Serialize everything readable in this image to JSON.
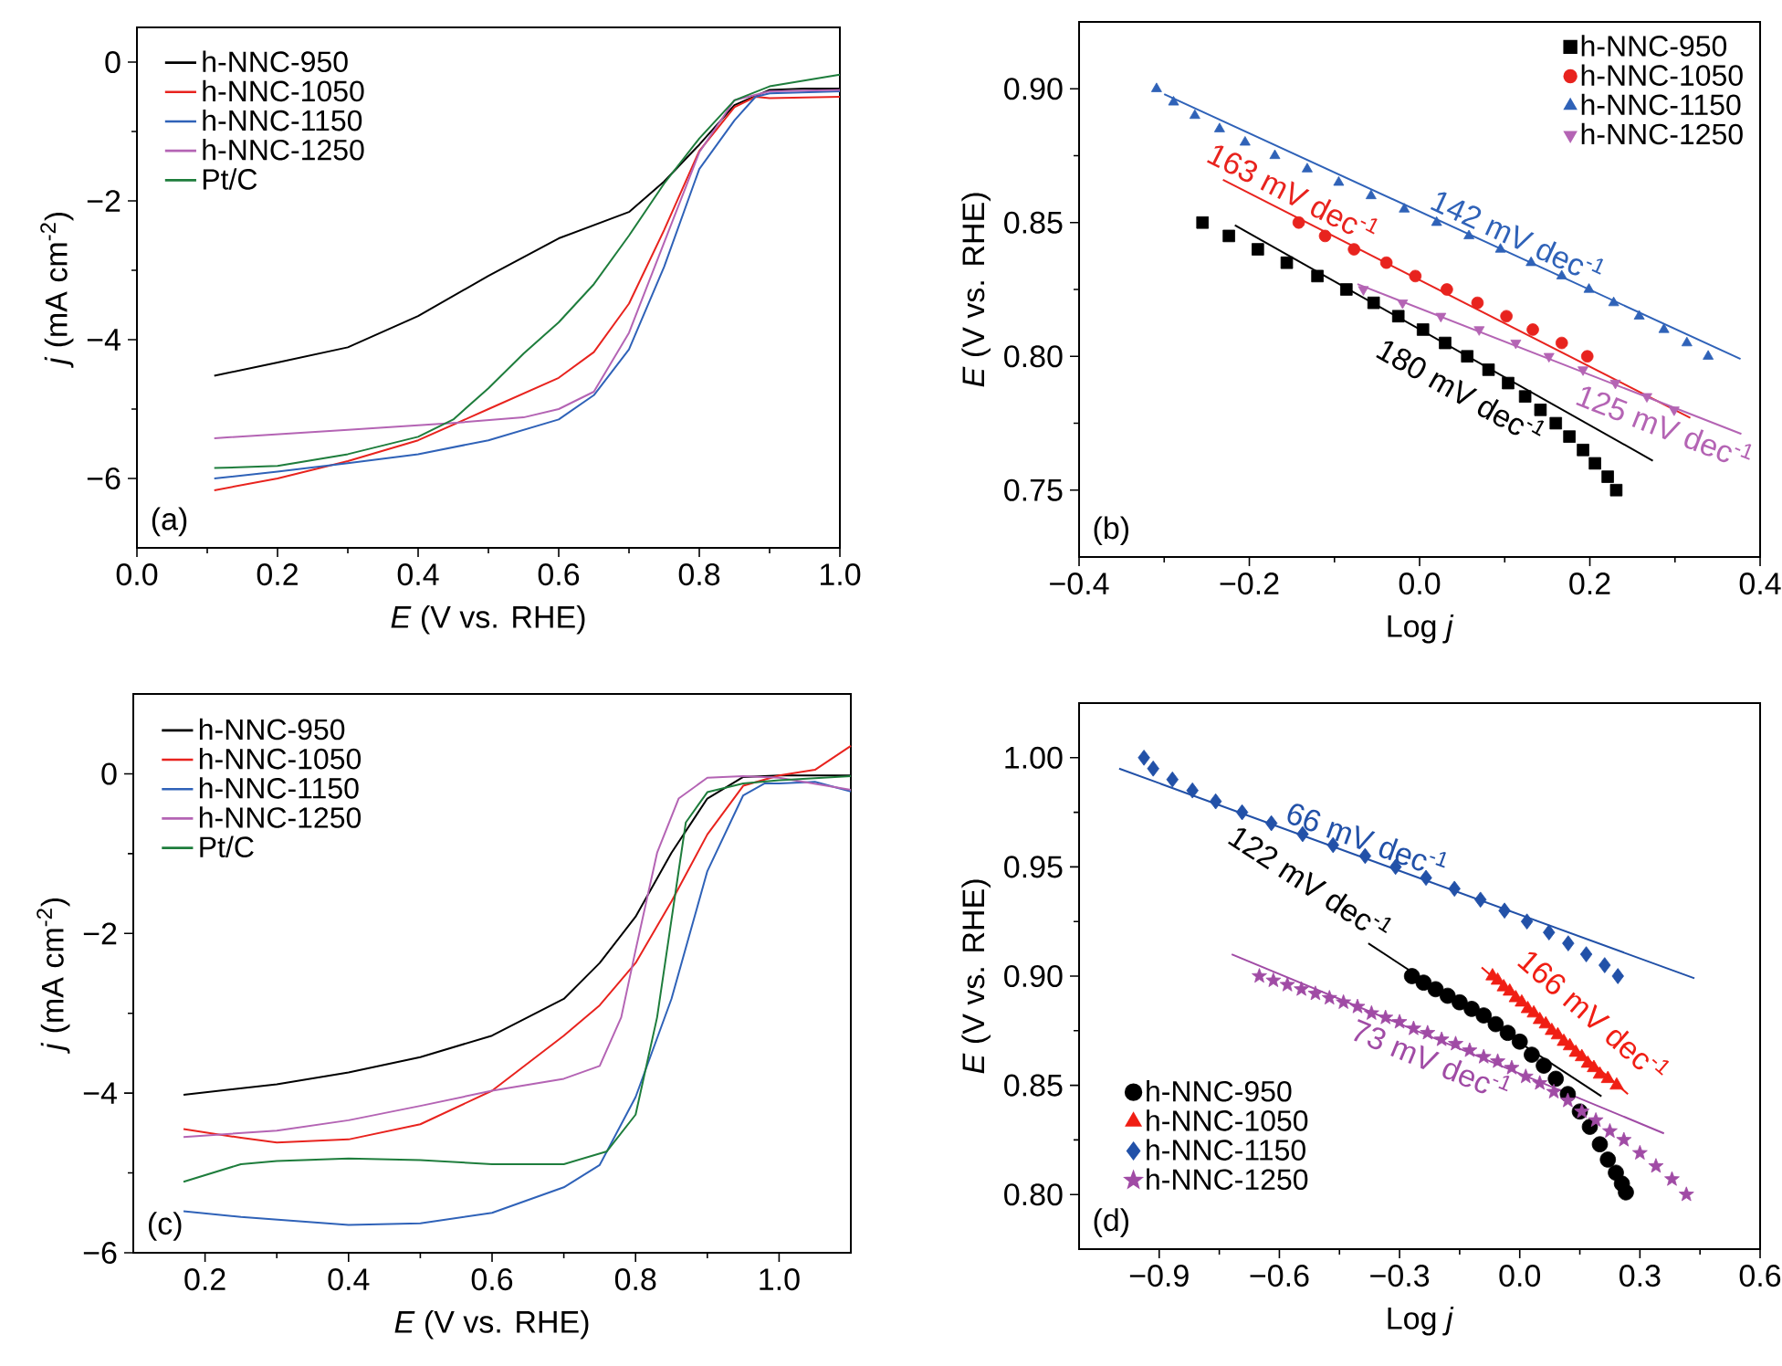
{
  "chart_data": [
    {
      "type": "line",
      "xlabel": "*E* (V vs. RHE)",
      "ylabel": "*j* (mA cm$^{-2}$)",
      "xlim": [
        0,
        1.0
      ],
      "ylim": [
        -7,
        0.5
      ],
      "xticks": [
        {
          "value": 0,
          "label": "0.0"
        },
        {
          "value": 0.2,
          "label": "0.2"
        },
        {
          "value": 0.4,
          "label": "0.4"
        },
        {
          "value": 0.6,
          "label": "0.6"
        },
        {
          "value": 0.8,
          "label": "0.8"
        },
        {
          "value": 1.0,
          "label": "1.0"
        }
      ],
      "yticks": [
        {
          "value": -6,
          "label": "−6"
        },
        {
          "value": -4,
          "label": "−4"
        },
        {
          "value": -2,
          "label": "−2"
        },
        {
          "value": 0,
          "label": "0"
        }
      ],
      "legend": "top left",
      "annotations": [
        "(a)"
      ],
      "series": [
        {
          "name": "h-NNC-950",
          "color": "#000000",
          "x": [
            0.11,
            0.2,
            0.3,
            0.4,
            0.5,
            0.6,
            0.7,
            0.75,
            0.8,
            0.85,
            0.9,
            0.95,
            1.0
          ],
          "values": [
            -4.52,
            -4.33,
            -4.11,
            -3.66,
            -3.08,
            -2.54,
            -2.16,
            -1.72,
            -1.19,
            -0.62,
            -0.4,
            -0.38,
            -0.38
          ]
        },
        {
          "name": "h-NNC-1050",
          "color": "#e8231e",
          "x": [
            0.11,
            0.2,
            0.3,
            0.4,
            0.5,
            0.6,
            0.65,
            0.7,
            0.75,
            0.8,
            0.85,
            0.88,
            0.9,
            1.0
          ],
          "values": [
            -6.17,
            -6.0,
            -5.75,
            -5.45,
            -5.0,
            -4.55,
            -4.18,
            -3.48,
            -2.42,
            -1.28,
            -0.65,
            -0.5,
            -0.52,
            -0.5
          ]
        },
        {
          "name": "h-NNC-1150",
          "color": "#2f62b8",
          "x": [
            0.11,
            0.2,
            0.3,
            0.4,
            0.5,
            0.6,
            0.65,
            0.7,
            0.75,
            0.8,
            0.85,
            0.88,
            0.9,
            1.0
          ],
          "values": [
            -6.0,
            -5.9,
            -5.78,
            -5.65,
            -5.45,
            -5.15,
            -4.8,
            -4.14,
            -2.95,
            -1.54,
            -0.84,
            -0.5,
            -0.45,
            -0.42
          ]
        },
        {
          "name": "h-NNC-1250",
          "color": "#b464b4",
          "x": [
            0.11,
            0.3,
            0.45,
            0.55,
            0.6,
            0.65,
            0.7,
            0.75,
            0.8,
            0.85,
            0.9,
            1.0
          ],
          "values": [
            -5.42,
            -5.3,
            -5.2,
            -5.12,
            -5.0,
            -4.75,
            -3.9,
            -2.6,
            -1.3,
            -0.55,
            -0.42,
            -0.4
          ]
        },
        {
          "name": "Pt/C",
          "color": "#1e7d3c",
          "x": [
            0.11,
            0.2,
            0.3,
            0.4,
            0.45,
            0.5,
            0.55,
            0.6,
            0.65,
            0.7,
            0.75,
            0.8,
            0.85,
            0.9,
            1.0
          ],
          "values": [
            -5.85,
            -5.82,
            -5.65,
            -5.4,
            -5.15,
            -4.7,
            -4.2,
            -3.75,
            -3.2,
            -2.5,
            -1.75,
            -1.1,
            -0.55,
            -0.35,
            -0.18
          ]
        }
      ]
    },
    {
      "type": "scatter",
      "xlabel": "Log *j*",
      "ylabel": "*E* (V vs. RHE)",
      "xlim": [
        -0.4,
        0.4
      ],
      "ylim": [
        0.725,
        0.925
      ],
      "xticks": [
        {
          "value": -0.4,
          "label": "−0.4"
        },
        {
          "value": -0.2,
          "label": "−0.2"
        },
        {
          "value": 0,
          "label": "0.0"
        },
        {
          "value": 0.2,
          "label": "0.2"
        },
        {
          "value": 0.4,
          "label": "0.4"
        }
      ],
      "yticks": [
        {
          "value": 0.75,
          "label": "0.75"
        },
        {
          "value": 0.8,
          "label": "0.80"
        },
        {
          "value": 0.85,
          "label": "0.85"
        },
        {
          "value": 0.9,
          "label": "0.90"
        }
      ],
      "legend": "top right",
      "annotations": [
        "(b)"
      ],
      "series": [
        {
          "name": "h-NNC-950",
          "color": "#000000",
          "marker": "square",
          "x": [
            -0.255,
            -0.224,
            -0.19,
            -0.156,
            -0.12,
            -0.086,
            -0.054,
            -0.025,
            0.004,
            0.03,
            0.056,
            0.081,
            0.104,
            0.124,
            0.142,
            0.16,
            0.176,
            0.192,
            0.206,
            0.221,
            0.231
          ],
          "values": [
            0.85,
            0.845,
            0.84,
            0.835,
            0.83,
            0.825,
            0.82,
            0.815,
            0.81,
            0.805,
            0.8,
            0.795,
            0.79,
            0.785,
            0.78,
            0.775,
            0.77,
            0.765,
            0.76,
            0.755,
            0.75
          ]
        },
        {
          "name": "h-NNC-1050",
          "color": "#e8231e",
          "marker": "circle",
          "x": [
            -0.142,
            -0.111,
            -0.077,
            -0.039,
            -0.005,
            0.032,
            0.068,
            0.102,
            0.133,
            0.167,
            0.197
          ],
          "values": [
            0.85,
            0.845,
            0.84,
            0.835,
            0.83,
            0.825,
            0.82,
            0.815,
            0.81,
            0.805,
            0.8
          ]
        },
        {
          "name": "h-NNC-1150",
          "color": "#2f62b8",
          "marker": "triangle",
          "x": [
            -0.309,
            -0.289,
            -0.264,
            -0.235,
            -0.205,
            -0.17,
            -0.132,
            -0.095,
            -0.057,
            -0.018,
            0.02,
            0.058,
            0.095,
            0.131,
            0.167,
            0.199,
            0.228,
            0.258,
            0.287,
            0.314,
            0.339
          ],
          "values": [
            0.9,
            0.895,
            0.89,
            0.885,
            0.88,
            0.875,
            0.87,
            0.865,
            0.86,
            0.855,
            0.85,
            0.845,
            0.84,
            0.835,
            0.83,
            0.825,
            0.82,
            0.815,
            0.81,
            0.805,
            0.8
          ]
        },
        {
          "name": "h-NNC-1250",
          "color": "#b464b4",
          "marker": "triangle-down",
          "x": [
            -0.066,
            -0.02,
            0.025,
            0.07,
            0.113,
            0.152,
            0.192,
            0.23,
            0.267,
            0.299
          ],
          "values": [
            0.825,
            0.82,
            0.815,
            0.81,
            0.805,
            0.8,
            0.795,
            0.79,
            0.785,
            0.78
          ]
        },
        {
          "type": "line",
          "name": "180 mV dec$^{-1}$",
          "color": "#000000",
          "x": [
            -0.217,
            0.274
          ],
          "values": [
            0.849,
            0.761
          ]
        },
        {
          "type": "line",
          "name": "163 mV dec$^{-1}$",
          "color": "#e8231e",
          "x": [
            -0.231,
            0.318
          ],
          "values": [
            0.866,
            0.777
          ]
        },
        {
          "type": "line",
          "name": "142 mV dec$^{-1}$",
          "color": "#2f62b8",
          "x": [
            -0.3,
            0.377
          ],
          "values": [
            0.898,
            0.799
          ]
        },
        {
          "type": "line",
          "name": "125 mV dec$^{-1}$",
          "color": "#b464b4",
          "x": [
            -0.073,
            0.378
          ],
          "values": [
            0.827,
            0.771
          ]
        }
      ]
    },
    {
      "type": "line",
      "xlabel": "*E* (V vs. RHE)",
      "ylabel": "*j* (mA cm$^{-2}$)",
      "xlim": [
        0.1,
        1.1
      ],
      "ylim": [
        -6,
        1
      ],
      "xticks": [
        {
          "value": 0.2,
          "label": "0.2"
        },
        {
          "value": 0.4,
          "label": "0.4"
        },
        {
          "value": 0.6,
          "label": "0.6"
        },
        {
          "value": 0.8,
          "label": "0.8"
        },
        {
          "value": 1.0,
          "label": "1.0"
        }
      ],
      "yticks": [
        {
          "value": -6,
          "label": "−6"
        },
        {
          "value": -4,
          "label": "−4"
        },
        {
          "value": -2,
          "label": "−2"
        },
        {
          "value": 0,
          "label": "0"
        }
      ],
      "legend": "top left",
      "annotations": [
        "(c)"
      ],
      "series": [
        {
          "name": "h-NNC-950",
          "color": "#000000",
          "x": [
            0.17,
            0.3,
            0.4,
            0.5,
            0.6,
            0.7,
            0.75,
            0.8,
            0.85,
            0.9,
            0.95,
            1.0,
            1.1
          ],
          "values": [
            -4.02,
            -3.89,
            -3.74,
            -3.55,
            -3.28,
            -2.82,
            -2.37,
            -1.79,
            -0.99,
            -0.31,
            -0.04,
            -0.02,
            -0.02
          ]
        },
        {
          "name": "h-NNC-1050",
          "color": "#e8231e",
          "x": [
            0.17,
            0.25,
            0.3,
            0.4,
            0.5,
            0.6,
            0.7,
            0.75,
            0.8,
            0.85,
            0.9,
            0.95,
            1.0,
            1.05,
            1.1
          ],
          "values": [
            -4.45,
            -4.56,
            -4.62,
            -4.58,
            -4.39,
            -3.97,
            -3.28,
            -2.9,
            -2.37,
            -1.6,
            -0.76,
            -0.15,
            -0.02,
            0.05,
            0.35
          ]
        },
        {
          "name": "h-NNC-1150",
          "color": "#2f62b8",
          "x": [
            0.17,
            0.25,
            0.4,
            0.5,
            0.6,
            0.7,
            0.75,
            0.8,
            0.85,
            0.9,
            0.95,
            0.98,
            1.0,
            1.05,
            1.1
          ],
          "values": [
            -5.48,
            -5.55,
            -5.65,
            -5.63,
            -5.5,
            -5.18,
            -4.9,
            -4.05,
            -2.82,
            -1.22,
            -0.27,
            -0.12,
            -0.12,
            -0.1,
            -0.22
          ]
        },
        {
          "name": "h-NNC-1250",
          "color": "#b464b4",
          "x": [
            0.17,
            0.3,
            0.4,
            0.5,
            0.6,
            0.7,
            0.75,
            0.78,
            0.8,
            0.83,
            0.86,
            0.9,
            0.95,
            1.0,
            1.1
          ],
          "values": [
            -4.55,
            -4.47,
            -4.34,
            -4.16,
            -3.97,
            -3.82,
            -3.66,
            -3.05,
            -2.21,
            -0.99,
            -0.31,
            -0.05,
            -0.03,
            -0.05,
            -0.2
          ]
        },
        {
          "name": "Pt/C",
          "color": "#1e7d3c",
          "x": [
            0.17,
            0.25,
            0.3,
            0.4,
            0.5,
            0.6,
            0.7,
            0.76,
            0.8,
            0.83,
            0.85,
            0.87,
            0.9,
            0.95,
            1.0,
            1.1
          ],
          "values": [
            -5.11,
            -4.89,
            -4.85,
            -4.82,
            -4.84,
            -4.89,
            -4.89,
            -4.73,
            -4.27,
            -3.05,
            -1.83,
            -0.61,
            -0.23,
            -0.12,
            -0.08,
            -0.03
          ]
        }
      ]
    },
    {
      "type": "scatter",
      "xlabel": "Log *j*",
      "ylabel": "*E* (V vs. RHE)",
      "xlim": [
        -1.1,
        0.6
      ],
      "ylim": [
        0.775,
        1.025
      ],
      "xticks": [
        {
          "value": -0.9,
          "label": "−0.9"
        },
        {
          "value": -0.6,
          "label": "−0.6"
        },
        {
          "value": -0.3,
          "label": "−0.3"
        },
        {
          "value": 0,
          "label": "0.0"
        },
        {
          "value": 0.3,
          "label": "0.3"
        },
        {
          "value": 0.6,
          "label": "0.6"
        }
      ],
      "yticks": [
        {
          "value": 0.8,
          "label": "0.80"
        },
        {
          "value": 0.85,
          "label": "0.85"
        },
        {
          "value": 0.9,
          "label": "0.90"
        },
        {
          "value": 0.95,
          "label": "0.95"
        },
        {
          "value": 1.0,
          "label": "1.00"
        }
      ],
      "legend": "bottom left",
      "annotations": [
        "(d)"
      ],
      "series": [
        {
          "name": "h-NNC-950",
          "color": "#000000",
          "marker": "circle",
          "x": [
            -0.269,
            -0.24,
            -0.21,
            -0.18,
            -0.15,
            -0.12,
            -0.09,
            -0.06,
            -0.03,
            0.0,
            0.03,
            0.06,
            0.09,
            0.12,
            0.15,
            0.175,
            0.2,
            0.22,
            0.24,
            0.255,
            0.265
          ],
          "values": [
            0.9,
            0.897,
            0.894,
            0.891,
            0.888,
            0.885,
            0.882,
            0.878,
            0.874,
            0.87,
            0.864,
            0.859,
            0.853,
            0.846,
            0.838,
            0.831,
            0.823,
            0.816,
            0.81,
            0.805,
            0.801
          ]
        },
        {
          "name": "h-NNC-1050",
          "color": "#f01e14",
          "marker": "triangle",
          "x": [
            -0.068,
            -0.055,
            -0.04,
            -0.025,
            -0.01,
            0.005,
            0.02,
            0.035,
            0.05,
            0.065,
            0.08,
            0.095,
            0.11,
            0.125,
            0.14,
            0.155,
            0.17,
            0.185,
            0.2,
            0.22,
            0.242
          ],
          "values": [
            0.9,
            0.898,
            0.895,
            0.893,
            0.89,
            0.888,
            0.885,
            0.883,
            0.88,
            0.878,
            0.875,
            0.873,
            0.87,
            0.868,
            0.865,
            0.863,
            0.86,
            0.858,
            0.855,
            0.853,
            0.85
          ]
        },
        {
          "name": "h-NNC-1150",
          "color": "#2251a8",
          "marker": "diamond",
          "x": [
            -0.938,
            -0.915,
            -0.867,
            -0.817,
            -0.759,
            -0.693,
            -0.62,
            -0.542,
            -0.466,
            -0.386,
            -0.31,
            -0.234,
            -0.163,
            -0.098,
            -0.038,
            0.018,
            0.073,
            0.121,
            0.166,
            0.212,
            0.245
          ],
          "values": [
            1.0,
            0.995,
            0.99,
            0.985,
            0.98,
            0.975,
            0.97,
            0.965,
            0.96,
            0.955,
            0.95,
            0.945,
            0.94,
            0.935,
            0.93,
            0.925,
            0.92,
            0.915,
            0.91,
            0.905,
            0.9
          ]
        },
        {
          "name": "h-NNC-1250",
          "color": "#a04ba5",
          "marker": "star",
          "x": [
            -0.65,
            -0.615,
            -0.58,
            -0.545,
            -0.51,
            -0.475,
            -0.44,
            -0.405,
            -0.37,
            -0.335,
            -0.3,
            -0.265,
            -0.23,
            -0.195,
            -0.16,
            -0.125,
            -0.09,
            -0.055,
            -0.02,
            0.015,
            0.05,
            0.085,
            0.12,
            0.155,
            0.19,
            0.225,
            0.26,
            0.3,
            0.34,
            0.38,
            0.416
          ],
          "values": [
            0.9,
            0.898,
            0.896,
            0.894,
            0.892,
            0.89,
            0.888,
            0.886,
            0.883,
            0.881,
            0.879,
            0.876,
            0.874,
            0.871,
            0.869,
            0.866,
            0.863,
            0.861,
            0.858,
            0.854,
            0.851,
            0.847,
            0.843,
            0.838,
            0.834,
            0.829,
            0.825,
            0.819,
            0.813,
            0.807,
            0.8
          ]
        },
        {
          "type": "line",
          "name": "122 mV dec$^{-1}$",
          "color": "#000000",
          "x": [
            -0.378,
            0.204
          ],
          "values": [
            0.915,
            0.845
          ]
        },
        {
          "type": "line",
          "name": "166 mV dec$^{-1}$",
          "color": "#f01e14",
          "x": [
            -0.095,
            0.27
          ],
          "values": [
            0.904,
            0.846
          ]
        },
        {
          "type": "line",
          "name": "66 mV dec$^{-1}$",
          "color": "#2251a8",
          "x": [
            -1.0,
            0.436
          ],
          "values": [
            0.995,
            0.899
          ]
        },
        {
          "type": "line",
          "name": "73 mV dec$^{-1}$",
          "color": "#a04ba5",
          "x": [
            -0.719,
            0.36
          ],
          "values": [
            0.91,
            0.828
          ]
        }
      ]
    }
  ]
}
